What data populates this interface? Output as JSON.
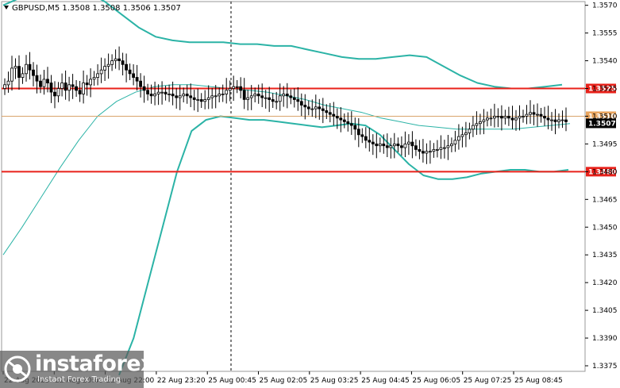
{
  "header": {
    "symbol_line": "GBPUSD,M5  1.3508 1.3508 1.3506 1.3507"
  },
  "logo": {
    "brand": "instaforex",
    "tagline": "Instant Forex Trading"
  },
  "chart_data": {
    "type": "candlestick",
    "symbol": "GBPUSD",
    "timeframe": "M5",
    "ohlc_last": {
      "open": 1.3508,
      "high": 1.3508,
      "low": 1.3506,
      "close": 1.3507
    },
    "y_ticks": [
      "1.3570",
      "1.3555",
      "1.3540",
      "1.3525",
      "1.3510",
      "1.3495",
      "1.3480",
      "1.3465",
      "1.3450",
      "1.3435",
      "1.3420",
      "1.3405",
      "1.3390",
      "1.3375"
    ],
    "ylim": [
      1.3372,
      1.3572
    ],
    "x_ticks": [
      "22 Aug 2025",
      "22 Aug 20:40",
      "22 Aug 22:00",
      "22 Aug 23:20",
      "25 Aug 00:45",
      "25 Aug 02:05",
      "25 Aug 03:25",
      "25 Aug 04:45",
      "25 Aug 06:05",
      "25 Aug 07:25",
      "25 Aug 08:45"
    ],
    "levels": [
      {
        "label": "1.3525",
        "value": 1.3525,
        "color": "#e8211a"
      },
      {
        "label": "1.3480",
        "value": 1.348,
        "color": "#e8211a"
      }
    ],
    "mid_level": {
      "label": "1.3510",
      "value": 1.351,
      "color": "#d9a36b"
    },
    "current_price": {
      "label": "1.3507",
      "value": 1.3507
    },
    "indicator_color": "#2bb3a6",
    "closes": [
      1.3527,
      1.3529,
      1.3536,
      1.3537,
      1.3531,
      1.3533,
      1.3538,
      1.3535,
      1.3532,
      1.3529,
      1.3526,
      1.353,
      1.3528,
      1.3523,
      1.3521,
      1.3525,
      1.3528,
      1.3524,
      1.3527,
      1.3526,
      1.3524,
      1.3522,
      1.3528,
      1.3527,
      1.353,
      1.3531,
      1.3533,
      1.3535,
      1.3537,
      1.3538,
      1.354,
      1.3541,
      1.354,
      1.3538,
      1.3535,
      1.3533,
      1.3531,
      1.3529,
      1.3526,
      1.3524,
      1.3522,
      1.3521,
      1.3522,
      1.3523,
      1.3523,
      1.3522,
      1.3522,
      1.3521,
      1.352,
      1.3521,
      1.3522,
      1.3521,
      1.352,
      1.3519,
      1.3519,
      1.3518,
      1.3519,
      1.352,
      1.3521,
      1.3521,
      1.3522,
      1.3522,
      1.3524,
      1.3525,
      1.3526,
      1.3526,
      1.3524,
      1.3519,
      1.352,
      1.3521,
      1.3522,
      1.3521,
      1.352,
      1.352,
      1.3519,
      1.3518,
      1.3518,
      1.3521,
      1.3522,
      1.3521,
      1.352,
      1.3519,
      1.3518,
      1.3516,
      1.3515,
      1.3514,
      1.3514,
      1.3515,
      1.3514,
      1.3513,
      1.3512,
      1.3511,
      1.351,
      1.3509,
      1.3508,
      1.3507,
      1.3506,
      1.3505,
      1.3503,
      1.35,
      1.3499,
      1.3497,
      1.3496,
      1.3495,
      1.3494,
      1.3495,
      1.3494,
      1.3493,
      1.3494,
      1.3495,
      1.3494,
      1.3493,
      1.3495,
      1.3496,
      1.3494,
      1.3492,
      1.3491,
      1.349,
      1.3491,
      1.3491,
      1.3492,
      1.3492,
      1.3493,
      1.3493,
      1.3494,
      1.3495,
      1.3497,
      1.3499,
      1.35,
      1.3501,
      1.3503,
      1.3505,
      1.3506,
      1.3507,
      1.3508,
      1.3509,
      1.3509,
      1.351,
      1.351,
      1.3509,
      1.351,
      1.3509,
      1.3508,
      1.3509,
      1.351,
      1.351,
      1.3511,
      1.3512,
      1.3511,
      1.3511,
      1.351,
      1.3509,
      1.3508,
      1.3508,
      1.3507,
      1.3508,
      1.3508,
      1.3507
    ],
    "upper_band": [
      1.357,
      1.3574,
      1.3577,
      1.3578,
      1.3578,
      1.3577,
      1.3572,
      1.3565,
      1.3558,
      1.3553,
      1.3551,
      1.355,
      1.355,
      1.355,
      1.3549,
      1.3549,
      1.3548,
      1.3548,
      1.3546,
      1.3544,
      1.3542,
      1.3541,
      1.3541,
      1.3542,
      1.3543,
      1.3542,
      1.3537,
      1.3532,
      1.3528,
      1.3526,
      1.3525,
      1.3525,
      1.3526,
      1.3527
    ],
    "lower_band": [
      1.337,
      1.339,
      1.342,
      1.345,
      1.348,
      1.3502,
      1.3508,
      1.351,
      1.3509,
      1.3508,
      1.3508,
      1.3507,
      1.3506,
      1.3505,
      1.3504,
      1.3505,
      1.3506,
      1.3505,
      1.35,
      1.3492,
      1.3484,
      1.3478,
      1.3476,
      1.3476,
      1.3477,
      1.3479,
      1.348,
      1.3481,
      1.3481,
      1.348,
      1.348,
      1.3481
    ],
    "ma": [
      1.3435,
      1.345,
      1.3466,
      1.3482,
      1.3497,
      1.351,
      1.3518,
      1.3523,
      1.3526,
      1.3527,
      1.3527,
      1.3526,
      1.3525,
      1.3524,
      1.3523,
      1.3521,
      1.3519,
      1.3516,
      1.3514,
      1.3512,
      1.3509,
      1.3507,
      1.3505,
      1.3504,
      1.3503,
      1.3503,
      1.3503,
      1.3503,
      1.3504,
      1.3505,
      1.3506
    ]
  }
}
